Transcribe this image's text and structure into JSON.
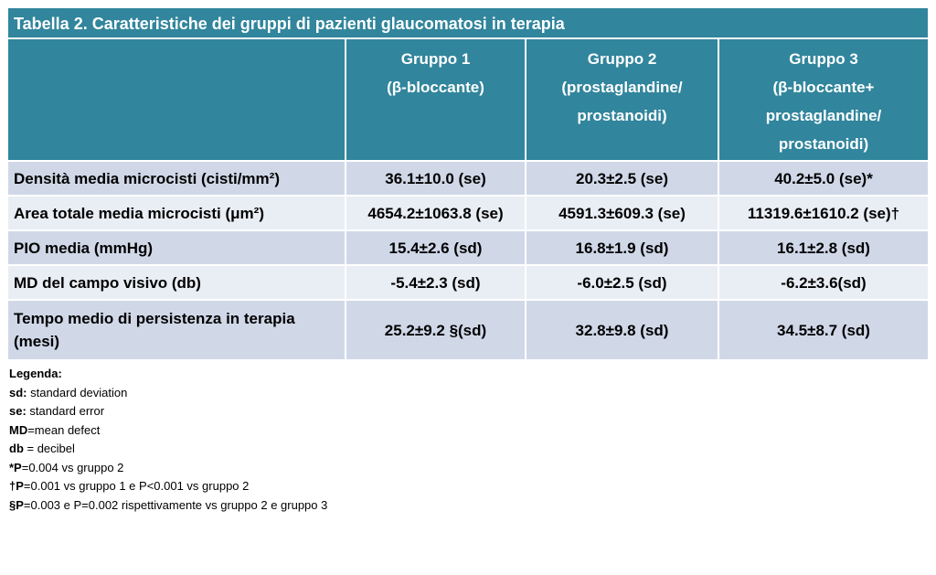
{
  "title": "Tabella 2. Caratteristiche dei gruppi di pazienti glaucomatosi in terapia",
  "colors": {
    "header_bg": "#31859c",
    "row_odd": "#d0d8e8",
    "row_even": "#e9edf4"
  },
  "table": {
    "headers": [
      {
        "lines": []
      },
      {
        "lines": [
          "Gruppo 1",
          "(β-bloccante)"
        ]
      },
      {
        "lines": [
          "Gruppo 2",
          "(prostaglandine/",
          "prostanoidi)"
        ]
      },
      {
        "lines": [
          "Gruppo 3",
          "(β-bloccante+",
          "prostaglandine/",
          "prostanoidi)"
        ]
      }
    ],
    "rows": [
      {
        "label": "Densità media microcisti (cisti/mm²)",
        "values": [
          "36.1±10.0 (se)",
          "20.3±2.5 (se)",
          "40.2±5.0 (se)*"
        ]
      },
      {
        "label": "Area totale media microcisti  (μm²)",
        "values": [
          "4654.2±1063.8 (se)",
          "4591.3±609.3 (se)",
          "11319.6±1610.2 (se)†"
        ]
      },
      {
        "label": "PIO media (mmHg)",
        "values": [
          "15.4±2.6 (sd)",
          "16.8±1.9 (sd)",
          "16.1±2.8 (sd)"
        ]
      },
      {
        "label": "MD del campo visivo (db)",
        "values": [
          "-5.4±2.3 (sd)",
          "-6.0±2.5 (sd)",
          "-6.2±3.6(sd)"
        ]
      },
      {
        "label": "Tempo medio di persistenza in terapia (mesi)",
        "values": [
          "25.2±9.2 §(sd)",
          "32.8±9.8 (sd)",
          "34.5±8.7 (sd)"
        ]
      }
    ]
  },
  "legend": {
    "heading": "Legenda:",
    "items": [
      {
        "key": "sd:",
        "text": " standard deviation"
      },
      {
        "key": "se:",
        "text": " standard error"
      },
      {
        "key": "MD",
        "text": "=mean defect"
      },
      {
        "key": "db",
        "text": " = decibel"
      },
      {
        "key": "*P",
        "text": "=0.004 vs gruppo 2"
      },
      {
        "key": "†P",
        "text": "=0.001 vs gruppo 1 e  P<0.001 vs gruppo 2"
      },
      {
        "key": "§P",
        "text": "=0.003 e  P=0.002 rispettivamente vs gruppo 2 e gruppo 3"
      }
    ]
  }
}
